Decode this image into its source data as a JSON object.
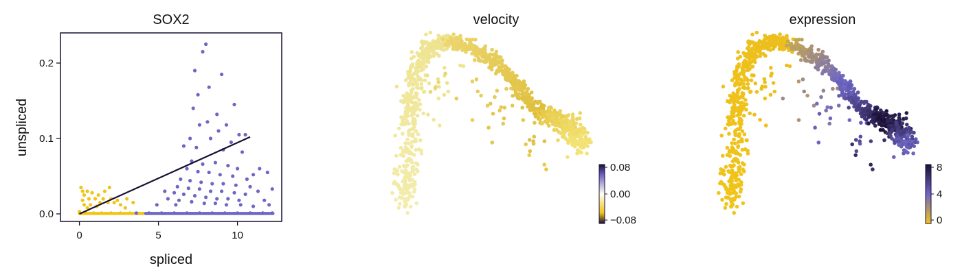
{
  "panels": {
    "sox2": {
      "title": "SOX2"
    },
    "velocity": {
      "title": "velocity"
    },
    "expression": {
      "title": "expression"
    }
  },
  "colors": {
    "low": "#f0c419",
    "mid": "#6e66c4",
    "high": "#1a0f33",
    "pale": "#f3ecac",
    "axis": "#1a0f33"
  },
  "chart_data": [
    {
      "type": "scatter",
      "title": "SOX2",
      "xlabel": "spliced",
      "ylabel": "unspliced",
      "xlim": [
        -1.2,
        12.8
      ],
      "ylim": [
        -0.01,
        0.24
      ],
      "xticks": [
        0,
        5,
        10
      ],
      "xtick_labels": [
        "0",
        "5",
        "10"
      ],
      "yticks": [
        0.0,
        0.1,
        0.2
      ],
      "ytick_labels": [
        "0.0",
        "0.1",
        "0.2"
      ],
      "grid": false,
      "series": [
        {
          "color": "#f0c419",
          "points": [
            [
              0.1,
              0.035
            ],
            [
              0.2,
              0.03
            ],
            [
              0.3,
              0.025
            ],
            [
              0.5,
              0.03
            ],
            [
              0.6,
              0.02
            ],
            [
              0.8,
              0.028
            ],
            [
              1.0,
              0.02
            ],
            [
              1.2,
              0.025
            ],
            [
              1.3,
              0.015
            ],
            [
              1.5,
              0.02
            ],
            [
              1.6,
              0.03
            ],
            [
              1.8,
              0.015
            ],
            [
              2.0,
              0.02
            ],
            [
              2.2,
              0.015
            ],
            [
              2.4,
              0.018
            ],
            [
              2.6,
              0.012
            ],
            [
              3.0,
              0.02
            ],
            [
              3.4,
              0.015
            ],
            [
              0.3,
              0.012
            ],
            [
              0.7,
              0.012
            ],
            [
              1.1,
              0.01
            ],
            [
              0.0,
              0.003
            ],
            [
              0.4,
              0.002
            ],
            [
              0.9,
              0.001
            ],
            [
              1.4,
              0.001
            ],
            [
              2.0,
              0.001
            ],
            [
              2.6,
              0.001
            ],
            [
              3.2,
              0.001
            ],
            [
              0.2,
              0.018
            ],
            [
              1.9,
              0.035
            ],
            [
              0.5,
              0.008
            ],
            [
              2.9,
              0.008
            ]
          ]
        },
        {
          "color": "#6e66c4",
          "points": [
            [
              7.3,
              0.19
            ],
            [
              8.0,
              0.225
            ],
            [
              7.8,
              0.215
            ],
            [
              9.0,
              0.185
            ],
            [
              8.2,
              0.168
            ],
            [
              7.5,
              0.158
            ],
            [
              9.8,
              0.145
            ],
            [
              7.2,
              0.14
            ],
            [
              8.7,
              0.132
            ],
            [
              8.1,
              0.122
            ],
            [
              7.6,
              0.118
            ],
            [
              9.3,
              0.118
            ],
            [
              8.8,
              0.11
            ],
            [
              10.1,
              0.105
            ],
            [
              10.5,
              0.105
            ],
            [
              7.0,
              0.1
            ],
            [
              8.3,
              0.1
            ],
            [
              9.6,
              0.095
            ],
            [
              6.6,
              0.09
            ],
            [
              7.4,
              0.088
            ],
            [
              9.1,
              0.085
            ],
            [
              10.3,
              0.082
            ],
            [
              11.4,
              0.06
            ],
            [
              11.9,
              0.055
            ],
            [
              11.0,
              0.052
            ],
            [
              7.1,
              0.07
            ],
            [
              7.8,
              0.066
            ],
            [
              8.6,
              0.068
            ],
            [
              9.4,
              0.064
            ],
            [
              10.0,
              0.06
            ],
            [
              6.8,
              0.06
            ],
            [
              7.5,
              0.056
            ],
            [
              8.2,
              0.055
            ],
            [
              8.9,
              0.052
            ],
            [
              9.7,
              0.05
            ],
            [
              10.6,
              0.046
            ],
            [
              6.4,
              0.046
            ],
            [
              7.0,
              0.044
            ],
            [
              7.7,
              0.042
            ],
            [
              8.4,
              0.04
            ],
            [
              9.1,
              0.04
            ],
            [
              9.9,
              0.038
            ],
            [
              10.8,
              0.036
            ],
            [
              6.2,
              0.036
            ],
            [
              6.9,
              0.034
            ],
            [
              7.6,
              0.033
            ],
            [
              8.3,
              0.03
            ],
            [
              9.0,
              0.03
            ],
            [
              9.8,
              0.028
            ],
            [
              10.5,
              0.026
            ],
            [
              11.3,
              0.03
            ],
            [
              6.0,
              0.028
            ],
            [
              6.6,
              0.026
            ],
            [
              7.3,
              0.024
            ],
            [
              8.0,
              0.022
            ],
            [
              8.7,
              0.02
            ],
            [
              9.4,
              0.02
            ],
            [
              10.1,
              0.018
            ],
            [
              12.2,
              0.033
            ],
            [
              5.6,
              0.02
            ],
            [
              6.3,
              0.018
            ],
            [
              7.1,
              0.016
            ],
            [
              7.9,
              0.014
            ],
            [
              8.6,
              0.014
            ],
            [
              9.3,
              0.012
            ],
            [
              10.2,
              0.012
            ],
            [
              11.0,
              0.01
            ],
            [
              6.1,
              0.012
            ],
            [
              5.4,
              0.03
            ],
            [
              4.9,
              0.012
            ],
            [
              11.7,
              0.018
            ],
            [
              12.0,
              0.012
            ],
            [
              3.6,
              0.001
            ],
            [
              4.4,
              0.001
            ],
            [
              5.2,
              0.001
            ],
            [
              6.0,
              0.001
            ],
            [
              6.8,
              0.001
            ],
            [
              7.6,
              0.001
            ],
            [
              8.4,
              0.001
            ],
            [
              9.2,
              0.001
            ],
            [
              10.0,
              0.001
            ],
            [
              10.8,
              0.001
            ],
            [
              11.6,
              0.001
            ],
            [
              12.2,
              0.001
            ]
          ]
        }
      ],
      "line": {
        "color": "#1a0f33",
        "x": [
          0,
          10.8
        ],
        "y": [
          0,
          0.102
        ]
      }
    },
    {
      "type": "scatter",
      "title": "velocity",
      "embedding": true,
      "colorbar": {
        "ticks": [
          "0.08",
          "0.00",
          "−0.08"
        ]
      }
    },
    {
      "type": "scatter",
      "title": "expression",
      "embedding": true,
      "colorbar": {
        "ticks": [
          "8",
          "4",
          "0"
        ]
      }
    }
  ]
}
